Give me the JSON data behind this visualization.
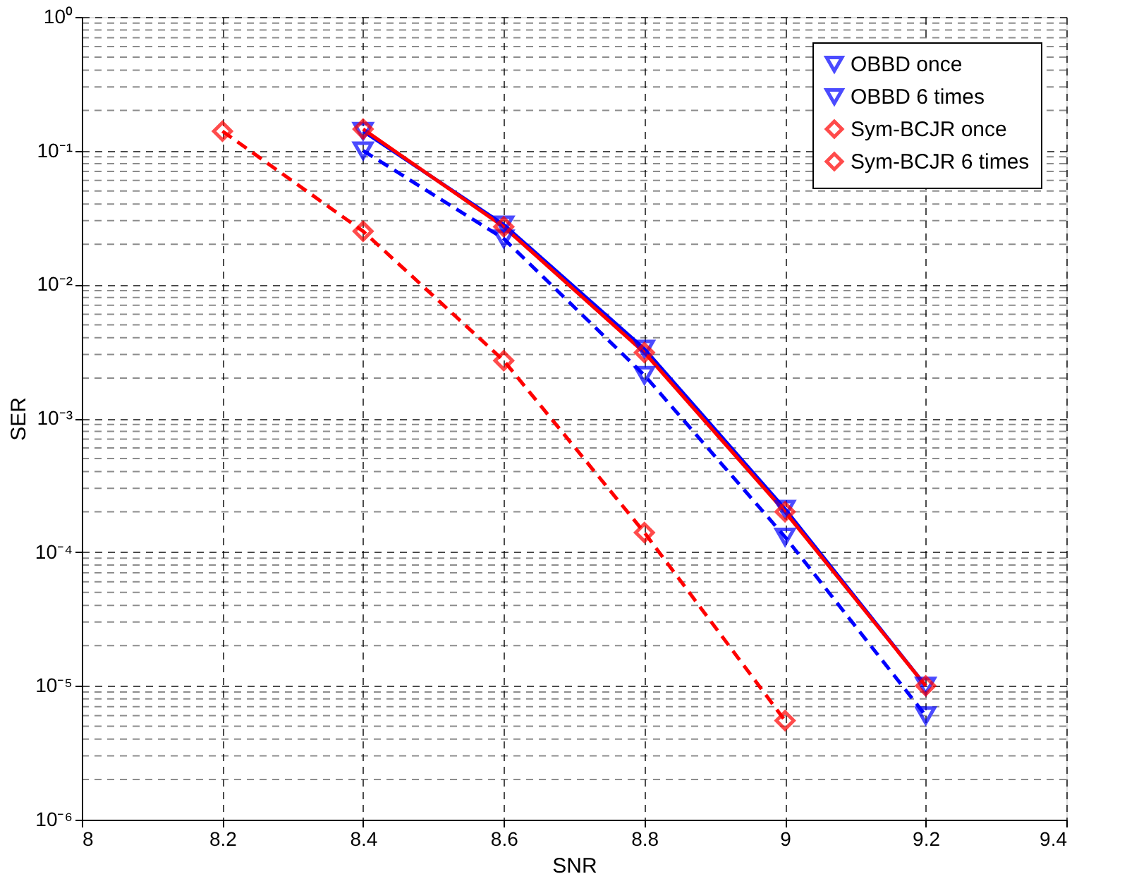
{
  "chart_data": {
    "type": "line",
    "xlabel": "SNR",
    "ylabel": "SER",
    "log": "y",
    "xlim": [
      8,
      9.4
    ],
    "xticks": [
      8,
      8.2,
      8.4,
      8.6,
      8.8,
      9,
      9.2,
      9.4
    ],
    "ylim": [
      1e-06,
      1
    ],
    "yticks": [
      {
        "value": 1e-06,
        "label": "10⁻⁶"
      },
      {
        "value": 1e-05,
        "label": "10⁻⁵"
      },
      {
        "value": 0.0001,
        "label": "10⁻⁴"
      },
      {
        "value": 0.001,
        "label": "10⁻³"
      },
      {
        "value": 0.01,
        "label": "10⁻²"
      },
      {
        "value": 0.1,
        "label": "10⁻¹"
      },
      {
        "value": 1,
        "label": "10⁰"
      }
    ],
    "grid": true,
    "legend": "top right",
    "series": [
      {
        "name": "OBBD once",
        "color": "#0000ff",
        "marker": "triangle",
        "line_style": "solid",
        "x": [
          8.4,
          8.6,
          8.8,
          9,
          9.2
        ],
        "values": [
          0.14,
          0.028,
          0.0033,
          0.00021,
          1e-05
        ]
      },
      {
        "name": "OBBD 6 times",
        "color": "#0000ff",
        "marker": "triangle",
        "line_style": "dashed",
        "x": [
          8.4,
          8.6,
          8.8,
          9,
          9.2
        ],
        "values": [
          0.1,
          0.022,
          0.0021,
          0.00013,
          6e-06
        ]
      },
      {
        "name": "Sym-BCJR once",
        "color": "#ff0000",
        "marker": "diamond",
        "line_style": "solid",
        "x": [
          8.4,
          8.6,
          8.8,
          9,
          9.2
        ],
        "values": [
          0.145,
          0.027,
          0.0031,
          0.0002,
          1e-05
        ]
      },
      {
        "name": "Sym-BCJR 6 times",
        "color": "#ff0000",
        "marker": "diamond",
        "line_style": "dashed",
        "x": [
          8.2,
          8.4,
          8.6,
          8.8,
          9
        ],
        "values": [
          0.14,
          0.025,
          0.0027,
          0.00014,
          5.5e-06
        ]
      }
    ]
  }
}
